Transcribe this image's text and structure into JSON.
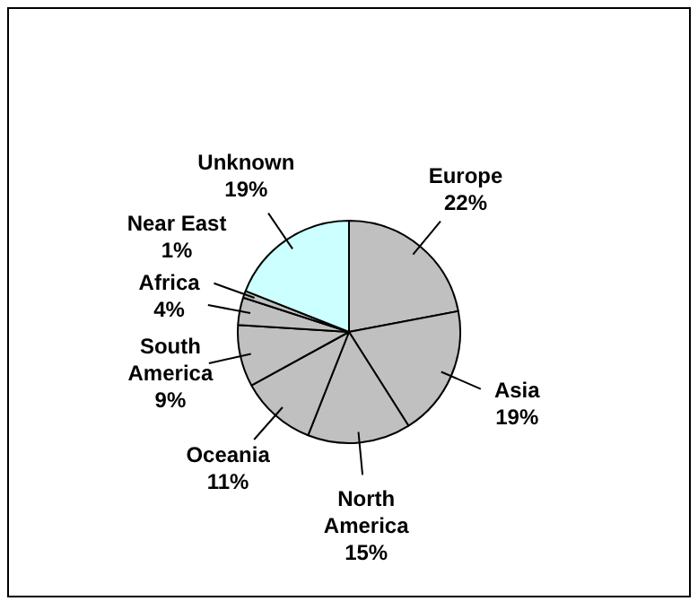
{
  "chart_data": {
    "type": "pie",
    "categories": [
      "Europe",
      "Asia",
      "North America",
      "Oceania",
      "South America",
      "Africa",
      "Near East",
      "Unknown"
    ],
    "values": [
      22,
      19,
      15,
      11,
      9,
      4,
      1,
      19
    ],
    "colors": [
      "#c0c0c0",
      "#c0c0c0",
      "#c0c0c0",
      "#c0c0c0",
      "#c0c0c0",
      "#c0c0c0",
      "#c0c0c0",
      "#ccffff"
    ],
    "value_labels": [
      "22%",
      "19%",
      "15%",
      "11%",
      "9%",
      "4%",
      "1%",
      "19%"
    ],
    "legend": false
  }
}
